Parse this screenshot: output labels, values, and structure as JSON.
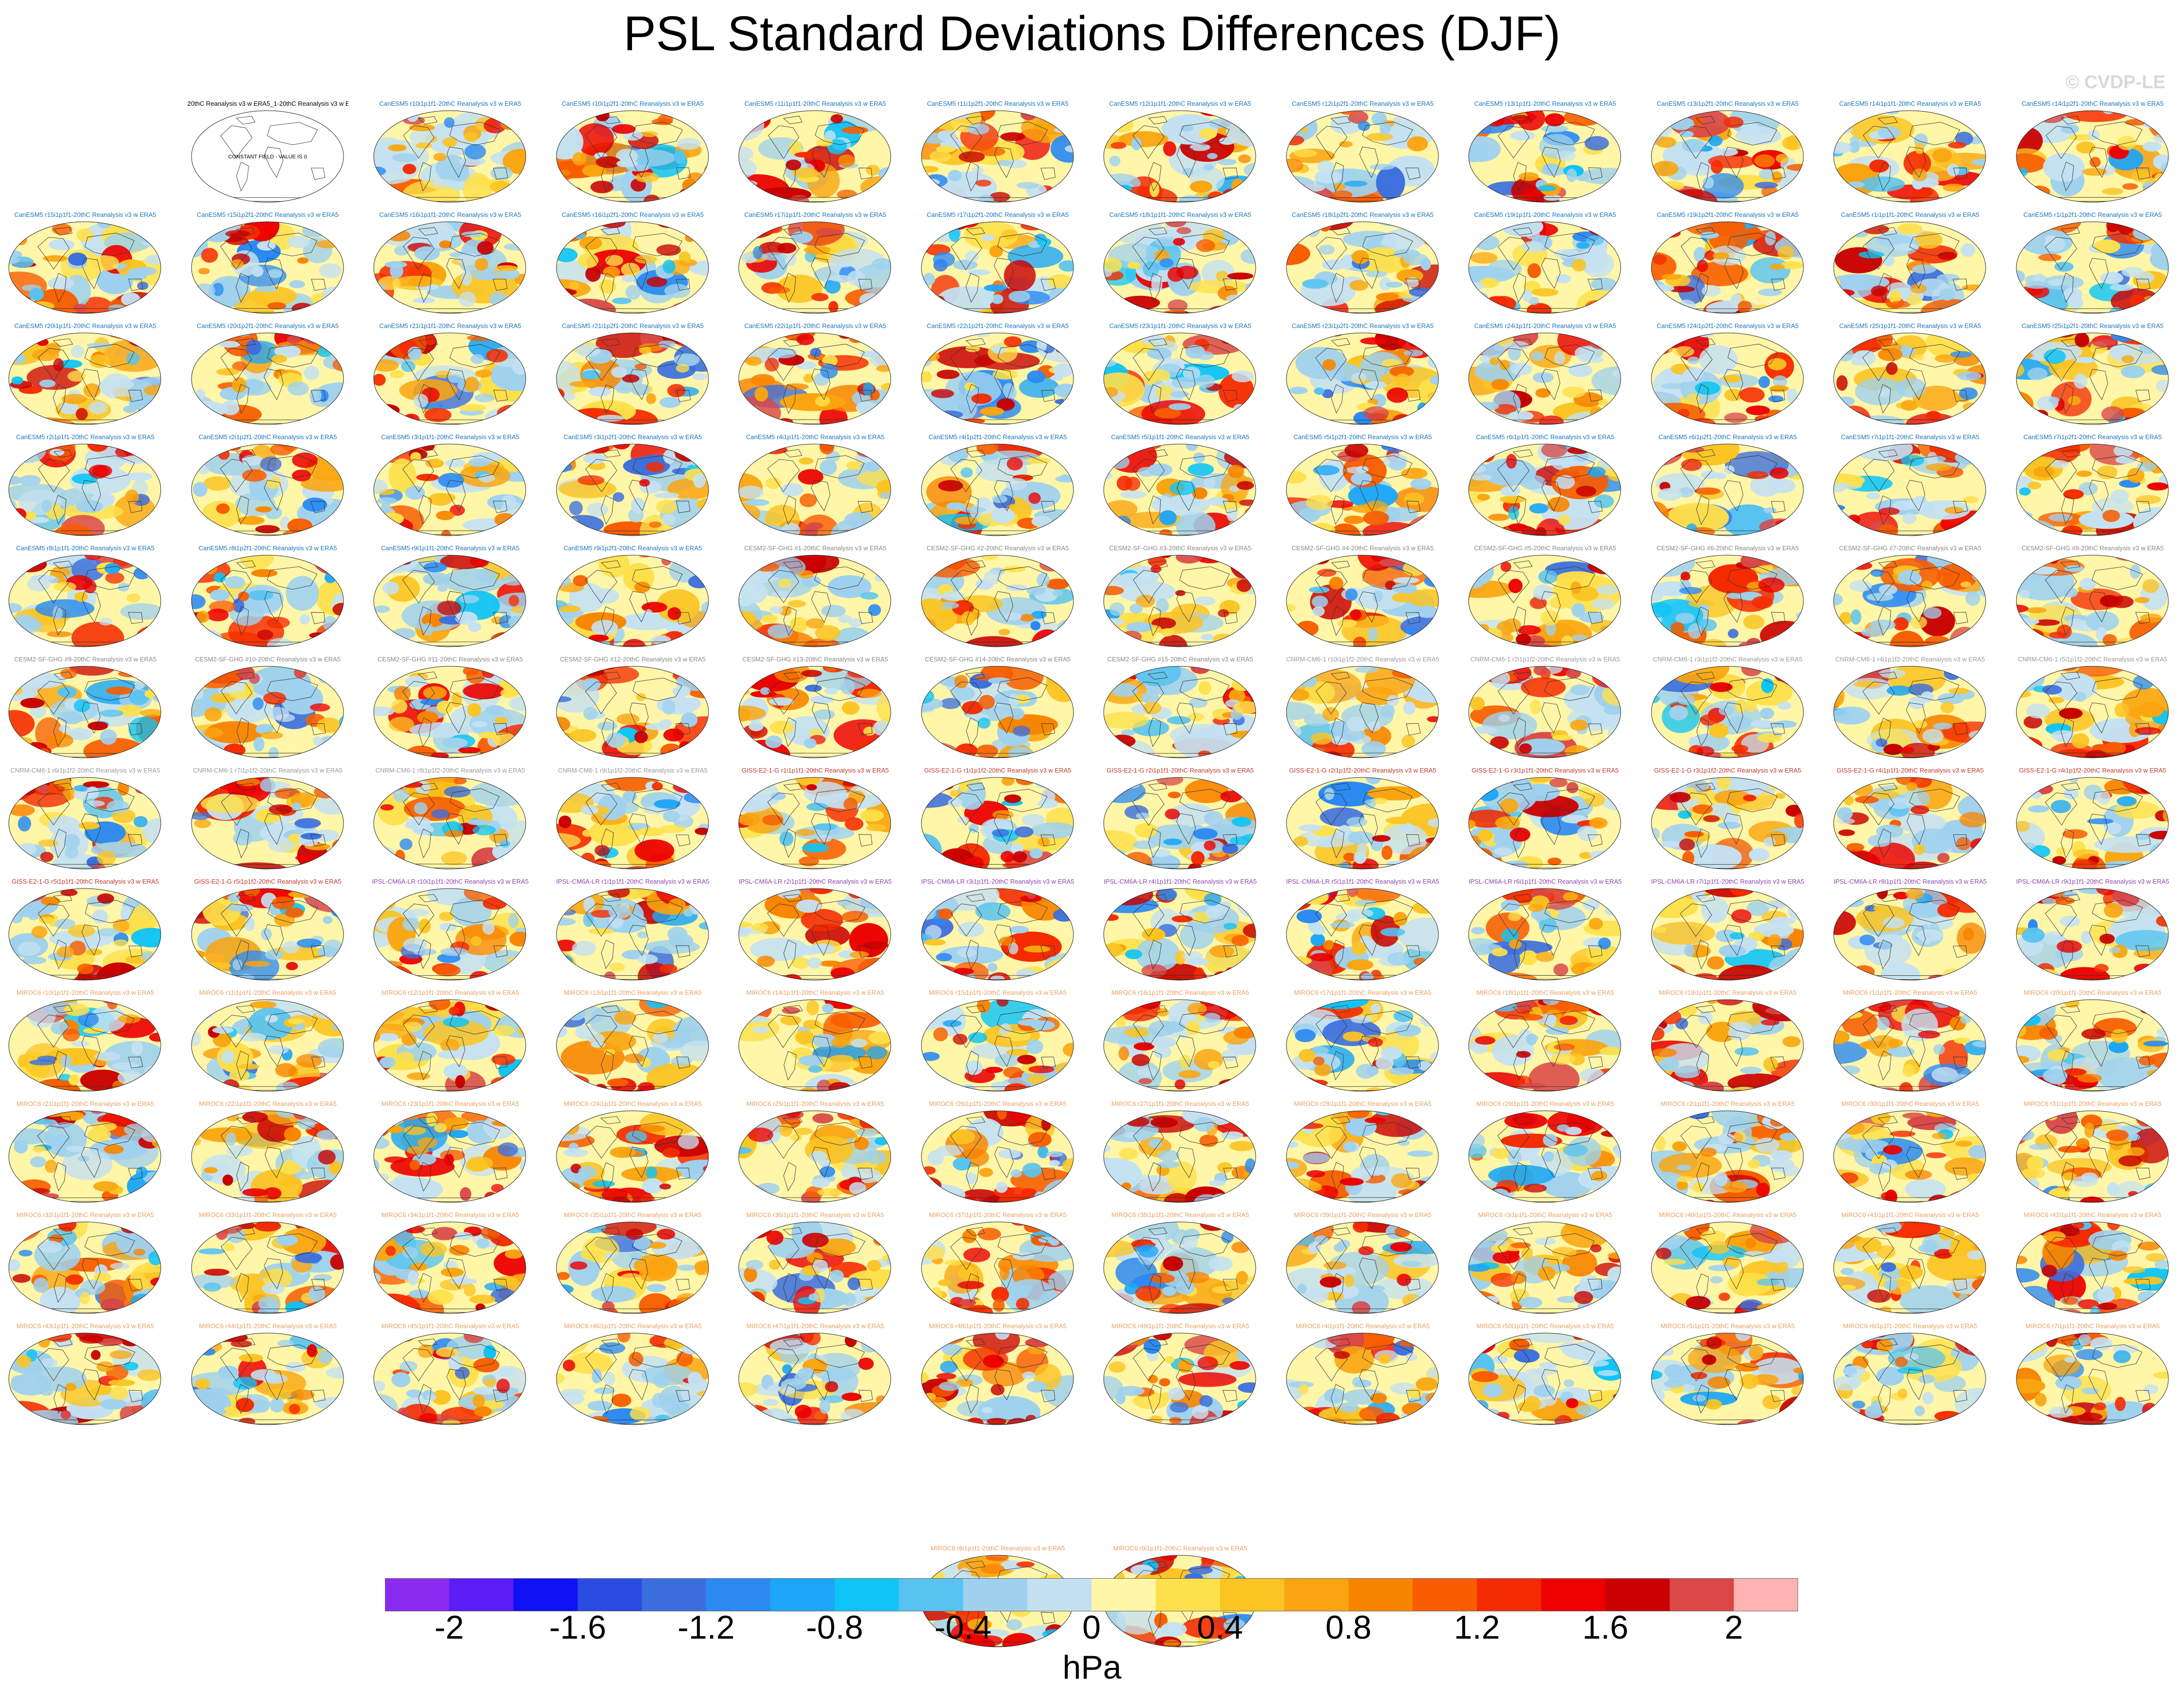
{
  "figure": {
    "title": "PSL Standard Deviations Differences (DJF)",
    "watermark": "© CVDP-LE",
    "units": "hPa"
  },
  "colors": {
    "map_base": "#FFF6A8",
    "coast": "#333333",
    "palette": [
      "#8A2BEF",
      "#5A1DF6",
      "#1010F4",
      "#2A4BE0",
      "#3C6FDE",
      "#2B8AF2",
      "#1DA6F7",
      "#10C4F6",
      "#58C3F0",
      "#9FD1EE",
      "#C4E1F2",
      "#FFF6A8",
      "#FEE04A",
      "#FBC423",
      "#FAA50F",
      "#F88500",
      "#F75D00",
      "#F52B00",
      "#EC0000",
      "#C90000",
      "#D94747",
      "#FFB3B3"
    ],
    "title_colors": {
      "obs": "#000000",
      "CanESM5": "#1A75B8",
      "CESM2-SF-GHG": "#888888",
      "CNRM-CM6-1": "#999999",
      "GISS-E2-1-G": "#C0392B",
      "IPSL-CM6A-LR": "#8E44AD",
      "MIROC6": "#E8A060"
    }
  },
  "chart_data": {
    "type": "map_panel_grid",
    "title": "PSL Standard Deviations Differences (DJF)",
    "variable": "PSL",
    "season": "DJF",
    "colorbar": {
      "levels": [
        -2.2,
        -2.0,
        -1.8,
        -1.6,
        -1.4,
        -1.2,
        -1.0,
        -0.8,
        -0.6,
        -0.4,
        -0.2,
        0,
        0.2,
        0.4,
        0.6,
        0.8,
        1.0,
        1.2,
        1.4,
        1.6,
        1.8,
        2.0,
        2.2
      ],
      "tick_labels": [
        "-2",
        "-1.6",
        "-1.2",
        "-0.8",
        "-0.4",
        "0",
        "0.4",
        "0.8",
        "1.2",
        "1.6",
        "2"
      ],
      "tick_values": [
        -2,
        -1.6,
        -1.2,
        -0.8,
        -0.4,
        0,
        0.4,
        0.8,
        1.2,
        1.6,
        2
      ],
      "range": [
        -2.2,
        2.2
      ],
      "label": "hPa"
    },
    "panels": [
      {
        "title": "20thC Reanalysis v3 w ERA5_1-20thC Reanalysis v3 w ERA5",
        "model": "obs",
        "field": "constant",
        "note": "CONSTANT FIELD - VALUE IS 0"
      },
      {
        "title": "CanESM5 r10i1p1f1-20thC Reanalysis v3 w ERA5",
        "model": "CanESM5"
      },
      {
        "title": "CanESM5 r10i1p2f1-20thC Reanalysis v3 w ERA5",
        "model": "CanESM5"
      },
      {
        "title": "CanESM5 r11i1p1f1-20thC Reanalysis v3 w ERA5",
        "model": "CanESM5"
      },
      {
        "title": "CanESM5 r11i1p2f1-20thC Reanalysis v3 w ERA5",
        "model": "CanESM5"
      },
      {
        "title": "CanESM5 r12i1p1f1-20thC Reanalysis v3 w ERA5",
        "model": "CanESM5"
      },
      {
        "title": "CanESM5 r12i1p2f1-20thC Reanalysis v3 w ERA5",
        "model": "CanESM5"
      },
      {
        "title": "CanESM5 r13i1p1f1-20thC Reanalysis v3 w ERA5",
        "model": "CanESM5"
      },
      {
        "title": "CanESM5 r13i1p2f1-20thC Reanalysis v3 w ERA5",
        "model": "CanESM5"
      },
      {
        "title": "CanESM5 r14i1p1f1-20thC Reanalysis v3 w ERA5",
        "model": "CanESM5"
      },
      {
        "title": "CanESM5 r14i1p2f1-20thC Reanalysis v3 w ERA5",
        "model": "CanESM5"
      },
      {
        "title": "CanESM5 r15i1p1f1-20thC Reanalysis v3 w ERA5",
        "model": "CanESM5"
      },
      {
        "title": "CanESM5 r15i1p2f1-20thC Reanalysis v3 w ERA5",
        "model": "CanESM5"
      },
      {
        "title": "CanESM5 r16i1p1f1-20thC Reanalysis v3 w ERA5",
        "model": "CanESM5"
      },
      {
        "title": "CanESM5 r16i1p2f1-20thC Reanalysis v3 w ERA5",
        "model": "CanESM5"
      },
      {
        "title": "CanESM5 r17i1p1f1-20thC Reanalysis v3 w ERA5",
        "model": "CanESM5"
      },
      {
        "title": "CanESM5 r17i1p2f1-20thC Reanalysis v3 w ERA5",
        "model": "CanESM5"
      },
      {
        "title": "CanESM5 r18i1p1f1-20thC Reanalysis v3 w ERA5",
        "model": "CanESM5"
      },
      {
        "title": "CanESM5 r18i1p2f1-20thC Reanalysis v3 w ERA5",
        "model": "CanESM5"
      },
      {
        "title": "CanESM5 r19i1p1f1-20thC Reanalysis v3 w ERA5",
        "model": "CanESM5"
      },
      {
        "title": "CanESM5 r19i1p2f1-20thC Reanalysis v3 w ERA5",
        "model": "CanESM5"
      },
      {
        "title": "CanESM5 r1i1p1f1-20thC Reanalysis v3 w ERA5",
        "model": "CanESM5"
      },
      {
        "title": "CanESM5 r1i1p2f1-20thC Reanalysis v3 w ERA5",
        "model": "CanESM5"
      },
      {
        "title": "CanESM5 r20i1p1f1-20thC Reanalysis v3 w ERA5",
        "model": "CanESM5"
      },
      {
        "title": "CanESM5 r20i1p2f1-20thC Reanalysis v3 w ERA5",
        "model": "CanESM5"
      },
      {
        "title": "CanESM5 r21i1p1f1-20thC Reanalysis v3 w ERA5",
        "model": "CanESM5"
      },
      {
        "title": "CanESM5 r21i1p2f1-20thC Reanalysis v3 w ERA5",
        "model": "CanESM5"
      },
      {
        "title": "CanESM5 r22i1p1f1-20thC Reanalysis v3 w ERA5",
        "model": "CanESM5"
      },
      {
        "title": "CanESM5 r22i1p2f1-20thC Reanalysis v3 w ERA5",
        "model": "CanESM5"
      },
      {
        "title": "CanESM5 r23i1p1f1-20thC Reanalysis v3 w ERA5",
        "model": "CanESM5"
      },
      {
        "title": "CanESM5 r23i1p2f1-20thC Reanalysis v3 w ERA5",
        "model": "CanESM5"
      },
      {
        "title": "CanESM5 r24i1p1f1-20thC Reanalysis v3 w ERA5",
        "model": "CanESM5"
      },
      {
        "title": "CanESM5 r24i1p2f1-20thC Reanalysis v3 w ERA5",
        "model": "CanESM5"
      },
      {
        "title": "CanESM5 r25i1p1f1-20thC Reanalysis v3 w ERA5",
        "model": "CanESM5"
      },
      {
        "title": "CanESM5 r25i1p2f1-20thC Reanalysis v3 w ERA5",
        "model": "CanESM5"
      },
      {
        "title": "CanESM5 r2i1p1f1-20thC Reanalysis v3 w ERA5",
        "model": "CanESM5"
      },
      {
        "title": "CanESM5 r2i1p2f1-20thC Reanalysis v3 w ERA5",
        "model": "CanESM5"
      },
      {
        "title": "CanESM5 r3i1p1f1-20thC Reanalysis v3 w ERA5",
        "model": "CanESM5"
      },
      {
        "title": "CanESM5 r3i1p2f1-20thC Reanalysis v3 w ERA5",
        "model": "CanESM5"
      },
      {
        "title": "CanESM5 r4i1p1f1-20thC Reanalysis v3 w ERA5",
        "model": "CanESM5"
      },
      {
        "title": "CanESM5 r4i1p2f1-20thC Reanalysis v3 w ERA5",
        "model": "CanESM5"
      },
      {
        "title": "CanESM5 r5i1p1f1-20thC Reanalysis v3 w ERA5",
        "model": "CanESM5"
      },
      {
        "title": "CanESM5 r5i1p2f1-20thC Reanalysis v3 w ERA5",
        "model": "CanESM5"
      },
      {
        "title": "CanESM5 r6i1p1f1-20thC Reanalysis v3 w ERA5",
        "model": "CanESM5"
      },
      {
        "title": "CanESM5 r6i1p2f1-20thC Reanalysis v3 w ERA5",
        "model": "CanESM5"
      },
      {
        "title": "CanESM5 r7i1p1f1-20thC Reanalysis v3 w ERA5",
        "model": "CanESM5"
      },
      {
        "title": "CanESM5 r7i1p2f1-20thC Reanalysis v3 w ERA5",
        "model": "CanESM5"
      },
      {
        "title": "CanESM5 r8i1p1f1-20thC Reanalysis v3 w ERA5",
        "model": "CanESM5"
      },
      {
        "title": "CanESM5 r8i1p2f1-20thC Reanalysis v3 w ERA5",
        "model": "CanESM5"
      },
      {
        "title": "CanESM5 r9i1p1f1-20thC Reanalysis v3 w ERA5",
        "model": "CanESM5"
      },
      {
        "title": "CanESM5 r9i1p2f1-20thC Reanalysis v3 w ERA5",
        "model": "CanESM5"
      },
      {
        "title": "CESM2-SF-GHG #1-20thC Reanalysis v3 w ERA5",
        "model": "CESM2-SF-GHG"
      },
      {
        "title": "CESM2-SF-GHG #2-20thC Reanalysis v3 w ERA5",
        "model": "CESM2-SF-GHG"
      },
      {
        "title": "CESM2-SF-GHG #3-20thC Reanalysis v3 w ERA5",
        "model": "CESM2-SF-GHG"
      },
      {
        "title": "CESM2-SF-GHG #4-20thC Reanalysis v3 w ERA5",
        "model": "CESM2-SF-GHG"
      },
      {
        "title": "CESM2-SF-GHG #5-20thC Reanalysis v3 w ERA5",
        "model": "CESM2-SF-GHG"
      },
      {
        "title": "CESM2-SF-GHG #6-20thC Reanalysis v3 w ERA5",
        "model": "CESM2-SF-GHG"
      },
      {
        "title": "CESM2-SF-GHG #7-20thC Reanalysis v3 w ERA5",
        "model": "CESM2-SF-GHG"
      },
      {
        "title": "CESM2-SF-GHG #8-20thC Reanalysis v3 w ERA5",
        "model": "CESM2-SF-GHG"
      },
      {
        "title": "CESM2-SF-GHG #9-20thC Reanalysis v3 w ERA5",
        "model": "CESM2-SF-GHG"
      },
      {
        "title": "CESM2-SF-GHG #10-20thC Reanalysis v3 w ERA5",
        "model": "CESM2-SF-GHG"
      },
      {
        "title": "CESM2-SF-GHG #11-20thC Reanalysis v3 w ERA5",
        "model": "CESM2-SF-GHG"
      },
      {
        "title": "CESM2-SF-GHG #12-20thC Reanalysis v3 w ERA5",
        "model": "CESM2-SF-GHG"
      },
      {
        "title": "CESM2-SF-GHG #13-20thC Reanalysis v3 w ERA5",
        "model": "CESM2-SF-GHG"
      },
      {
        "title": "CESM2-SF-GHG #14-20thC Reanalysis v3 w ERA5",
        "model": "CESM2-SF-GHG"
      },
      {
        "title": "CESM2-SF-GHG #15-20thC Reanalysis v3 w ERA5",
        "model": "CESM2-SF-GHG"
      },
      {
        "title": "CNRM-CM6-1 r10i1p1f2-20thC Reanalysis v3 w ERA5",
        "model": "CNRM-CM6-1"
      },
      {
        "title": "CNRM-CM6-1 r2i1p1f2-20thC Reanalysis v3 w ERA5",
        "model": "CNRM-CM6-1"
      },
      {
        "title": "CNRM-CM6-1 r3i1p1f2-20thC Reanalysis v3 w ERA5",
        "model": "CNRM-CM6-1"
      },
      {
        "title": "CNRM-CM6-1 r4i1p1f2-20thC Reanalysis v3 w ERA5",
        "model": "CNRM-CM6-1"
      },
      {
        "title": "CNRM-CM6-1 r5i1p1f2-20thC Reanalysis v3 w ERA5",
        "model": "CNRM-CM6-1"
      },
      {
        "title": "CNRM-CM6-1 r6i1p1f2-20thC Reanalysis v3 w ERA5",
        "model": "CNRM-CM6-1"
      },
      {
        "title": "CNRM-CM6-1 r7i1p1f2-20thC Reanalysis v3 w ERA5",
        "model": "CNRM-CM6-1"
      },
      {
        "title": "CNRM-CM6-1 r8i1p1f2-20thC Reanalysis v3 w ERA5",
        "model": "CNRM-CM6-1"
      },
      {
        "title": "CNRM-CM6-1 r9i1p1f2-20thC Reanalysis v3 w ERA5",
        "model": "CNRM-CM6-1"
      },
      {
        "title": "GISS-E2-1-G r1i1p1f1-20thC Reanalysis v3 w ERA5",
        "model": "GISS-E2-1-G"
      },
      {
        "title": "GISS-E2-1-G r1i1p1f2-20thC Reanalysis v3 w ERA5",
        "model": "GISS-E2-1-G"
      },
      {
        "title": "GISS-E2-1-G r2i1p1f1-20thC Reanalysis v3 w ERA5",
        "model": "GISS-E2-1-G"
      },
      {
        "title": "GISS-E2-1-G r2i1p1f2-20thC Reanalysis v3 w ERA5",
        "model": "GISS-E2-1-G"
      },
      {
        "title": "GISS-E2-1-G r3i1p1f1-20thC Reanalysis v3 w ERA5",
        "model": "GISS-E2-1-G"
      },
      {
        "title": "GISS-E2-1-G r3i1p1f2-20thC Reanalysis v3 w ERA5",
        "model": "GISS-E2-1-G"
      },
      {
        "title": "GISS-E2-1-G r4i1p1f1-20thC Reanalysis v3 w ERA5",
        "model": "GISS-E2-1-G"
      },
      {
        "title": "GISS-E2-1-G r4i1p1f2-20thC Reanalysis v3 w ERA5",
        "model": "GISS-E2-1-G"
      },
      {
        "title": "GISS-E2-1-G r5i1p1f1-20thC Reanalysis v3 w ERA5",
        "model": "GISS-E2-1-G"
      },
      {
        "title": "GISS-E2-1-G r5i1p1f2-20thC Reanalysis v3 w ERA5",
        "model": "GISS-E2-1-G"
      },
      {
        "title": "IPSL-CM6A-LR r10i1p1f1-20thC Reanalysis v3 w ERA5",
        "model": "IPSL-CM6A-LR"
      },
      {
        "title": "IPSL-CM6A-LR r1i1p1f1-20thC Reanalysis v3 w ERA5",
        "model": "IPSL-CM6A-LR"
      },
      {
        "title": "IPSL-CM6A-LR r2i1p1f1-20thC Reanalysis v3 w ERA5",
        "model": "IPSL-CM6A-LR"
      },
      {
        "title": "IPSL-CM6A-LR r3i1p1f1-20thC Reanalysis v3 w ERA5",
        "model": "IPSL-CM6A-LR"
      },
      {
        "title": "IPSL-CM6A-LR r4i1p1f1-20thC Reanalysis v3 w ERA5",
        "model": "IPSL-CM6A-LR"
      },
      {
        "title": "IPSL-CM6A-LR r5i1p1f1-20thC Reanalysis v3 w ERA5",
        "model": "IPSL-CM6A-LR"
      },
      {
        "title": "IPSL-CM6A-LR r6i1p1f1-20thC Reanalysis v3 w ERA5",
        "model": "IPSL-CM6A-LR"
      },
      {
        "title": "IPSL-CM6A-LR r7i1p1f1-20thC Reanalysis v3 w ERA5",
        "model": "IPSL-CM6A-LR"
      },
      {
        "title": "IPSL-CM6A-LR r8i1p1f1-20thC Reanalysis v3 w ERA5",
        "model": "IPSL-CM6A-LR"
      },
      {
        "title": "IPSL-CM6A-LR r9i1p1f1-20thC Reanalysis v3 w ERA5",
        "model": "IPSL-CM6A-LR"
      },
      {
        "title": "MIROC6 r10i1p1f1-20thC Reanalysis v3 w ERA5",
        "model": "MIROC6"
      },
      {
        "title": "MIROC6 r11i1p1f1-20thC Reanalysis v3 w ERA5",
        "model": "MIROC6"
      },
      {
        "title": "MIROC6 r12i1p1f1-20thC Reanalysis v3 w ERA5",
        "model": "MIROC6"
      },
      {
        "title": "MIROC6 r13i1p1f1-20thC Reanalysis v3 w ERA5",
        "model": "MIROC6"
      },
      {
        "title": "MIROC6 r14i1p1f1-20thC Reanalysis v3 w ERA5",
        "model": "MIROC6"
      },
      {
        "title": "MIROC6 r15i1p1f1-20thC Reanalysis v3 w ERA5",
        "model": "MIROC6"
      },
      {
        "title": "MIROC6 r16i1p1f1-20thC Reanalysis v3 w ERA5",
        "model": "MIROC6"
      },
      {
        "title": "MIROC6 r17i1p1f1-20thC Reanalysis v3 w ERA5",
        "model": "MIROC6"
      },
      {
        "title": "MIROC6 r18i1p1f1-20thC Reanalysis v3 w ERA5",
        "model": "MIROC6"
      },
      {
        "title": "MIROC6 r19i1p1f1-20thC Reanalysis v3 w ERA5",
        "model": "MIROC6"
      },
      {
        "title": "MIROC6 r1i1p1f1-20thC Reanalysis v3 w ERA5",
        "model": "MIROC6"
      },
      {
        "title": "MIROC6 r20i1p1f1-20thC Reanalysis v3 w ERA5",
        "model": "MIROC6"
      },
      {
        "title": "MIROC6 r21i1p1f1-20thC Reanalysis v3 w ERA5",
        "model": "MIROC6"
      },
      {
        "title": "MIROC6 r22i1p1f1-20thC Reanalysis v3 w ERA5",
        "model": "MIROC6"
      },
      {
        "title": "MIROC6 r23i1p1f1-20thC Reanalysis v3 w ERA5",
        "model": "MIROC6"
      },
      {
        "title": "MIROC6 r24i1p1f1-20thC Reanalysis v3 w ERA5",
        "model": "MIROC6"
      },
      {
        "title": "MIROC6 r25i1p1f1-20thC Reanalysis v3 w ERA5",
        "model": "MIROC6"
      },
      {
        "title": "MIROC6 r26i1p1f1-20thC Reanalysis v3 w ERA5",
        "model": "MIROC6"
      },
      {
        "title": "MIROC6 r27i1p1f1-20thC Reanalysis v3 w ERA5",
        "model": "MIROC6"
      },
      {
        "title": "MIROC6 r28i1p1f1-20thC Reanalysis v3 w ERA5",
        "model": "MIROC6"
      },
      {
        "title": "MIROC6 r29i1p1f1-20thC Reanalysis v3 w ERA5",
        "model": "MIROC6"
      },
      {
        "title": "MIROC6 r2i1p1f1-20thC Reanalysis v3 w ERA5",
        "model": "MIROC6"
      },
      {
        "title": "MIROC6 r30i1p1f1-20thC Reanalysis v3 w ERA5",
        "model": "MIROC6"
      },
      {
        "title": "MIROC6 r31i1p1f1-20thC Reanalysis v3 w ERA5",
        "model": "MIROC6"
      },
      {
        "title": "MIROC6 r32i1p1f1-20thC Reanalysis v3 w ERA5",
        "model": "MIROC6"
      },
      {
        "title": "MIROC6 r33i1p1f1-20thC Reanalysis v3 w ERA5",
        "model": "MIROC6"
      },
      {
        "title": "MIROC6 r34i1p1f1-20thC Reanalysis v3 w ERA5",
        "model": "MIROC6"
      },
      {
        "title": "MIROC6 r35i1p1f1-20thC Reanalysis v3 w ERA5",
        "model": "MIROC6"
      },
      {
        "title": "MIROC6 r36i1p1f1-20thC Reanalysis v3 w ERA5",
        "model": "MIROC6"
      },
      {
        "title": "MIROC6 r37i1p1f1-20thC Reanalysis v3 w ERA5",
        "model": "MIROC6"
      },
      {
        "title": "MIROC6 r38i1p1f1-20thC Reanalysis v3 w ERA5",
        "model": "MIROC6"
      },
      {
        "title": "MIROC6 r39i1p1f1-20thC Reanalysis v3 w ERA5",
        "model": "MIROC6"
      },
      {
        "title": "MIROC6 r3i1p1f1-20thC Reanalysis v3 w ERA5",
        "model": "MIROC6"
      },
      {
        "title": "MIROC6 r40i1p1f1-20thC Reanalysis v3 w ERA5",
        "model": "MIROC6"
      },
      {
        "title": "MIROC6 r41i1p1f1-20thC Reanalysis v3 w ERA5",
        "model": "MIROC6"
      },
      {
        "title": "MIROC6 r42i1p1f1-20thC Reanalysis v3 w ERA5",
        "model": "MIROC6"
      },
      {
        "title": "MIROC6 r43i1p1f1-20thC Reanalysis v3 w ERA5",
        "model": "MIROC6"
      },
      {
        "title": "MIROC6 r44i1p1f1-20thC Reanalysis v3 w ERA5",
        "model": "MIROC6"
      },
      {
        "title": "MIROC6 r45i1p1f1-20thC Reanalysis v3 w ERA5",
        "model": "MIROC6"
      },
      {
        "title": "MIROC6 r46i1p1f1-20thC Reanalysis v3 w ERA5",
        "model": "MIROC6"
      },
      {
        "title": "MIROC6 r47i1p1f1-20thC Reanalysis v3 w ERA5",
        "model": "MIROC6"
      },
      {
        "title": "MIROC6 r48i1p1f1-20thC Reanalysis v3 w ERA5",
        "model": "MIROC6"
      },
      {
        "title": "MIROC6 r49i1p1f1-20thC Reanalysis v3 w ERA5",
        "model": "MIROC6"
      },
      {
        "title": "MIROC6 r4i1p1f1-20thC Reanalysis v3 w ERA5",
        "model": "MIROC6"
      },
      {
        "title": "MIROC6 r50i1p1f1-20thC Reanalysis v3 w ERA5",
        "model": "MIROC6"
      },
      {
        "title": "MIROC6 r5i1p1f1-20thC Reanalysis v3 w ERA5",
        "model": "MIROC6"
      },
      {
        "title": "MIROC6 r6i1p1f1-20thC Reanalysis v3 w ERA5",
        "model": "MIROC6"
      },
      {
        "title": "MIROC6 r7i1p1f1-20thC Reanalysis v3 w ERA5",
        "model": "MIROC6"
      },
      {
        "title": "MIROC6 r8i1p1f1-20thC Reanalysis v3 w ERA5",
        "model": "MIROC6"
      },
      {
        "title": "MIROC6 r9i1p1f1-20thC Reanalysis v3 w ERA5",
        "model": "MIROC6"
      }
    ]
  }
}
